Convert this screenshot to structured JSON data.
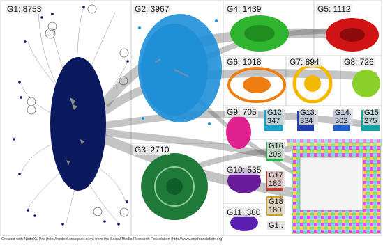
{
  "groups": [
    {
      "id": "g1",
      "label": "G1: 8753",
      "color": "#0b1a5e"
    },
    {
      "id": "g2",
      "label": "G2: 3967",
      "color": "#1f8fd8"
    },
    {
      "id": "g3",
      "label": "G3: 2710",
      "color": "#1f7a3a"
    },
    {
      "id": "g4",
      "label": "G4: 1439",
      "color": "#2fb52f"
    },
    {
      "id": "g5",
      "label": "G5: 1112",
      "color": "#d01414"
    },
    {
      "id": "g6",
      "label": "G6: 1018",
      "color": "#f07d0f"
    },
    {
      "id": "g7",
      "label": "G7: 894",
      "color": "#f5b800"
    },
    {
      "id": "g8",
      "label": "G8: 726",
      "color": "#8bd12a"
    },
    {
      "id": "g9",
      "label": "G9: 705",
      "color": "#e0208f"
    },
    {
      "id": "g10",
      "label": "G10: 535",
      "color": "#6a1b9a"
    },
    {
      "id": "g11",
      "label": "G11: 380",
      "color": "#5a1fb0"
    },
    {
      "id": "g12",
      "label": "G12:\n347",
      "color": "#1aa2c9"
    },
    {
      "id": "g13",
      "label": "G13:\n334",
      "color": "#1e3fb0"
    },
    {
      "id": "g14",
      "label": "G14:\n302",
      "color": "#1f5fcf"
    },
    {
      "id": "g15",
      "label": "G15\n275",
      "color": "#16a3a3"
    },
    {
      "id": "g16",
      "label": "G16\n208",
      "color": "#2ab34a"
    },
    {
      "id": "g17",
      "label": "G17\n182",
      "color": "#c0392b"
    },
    {
      "id": "g18",
      "label": "G18\n180",
      "color": "#d4a017"
    },
    {
      "id": "g19",
      "label": "G1..",
      "color": "#8a2be2"
    }
  ],
  "footer": "Created with NodeXL Pro (http://nodexl.codeplex.com) from the Social Media Research Foundation (http://www.smrfoundation.org)"
}
